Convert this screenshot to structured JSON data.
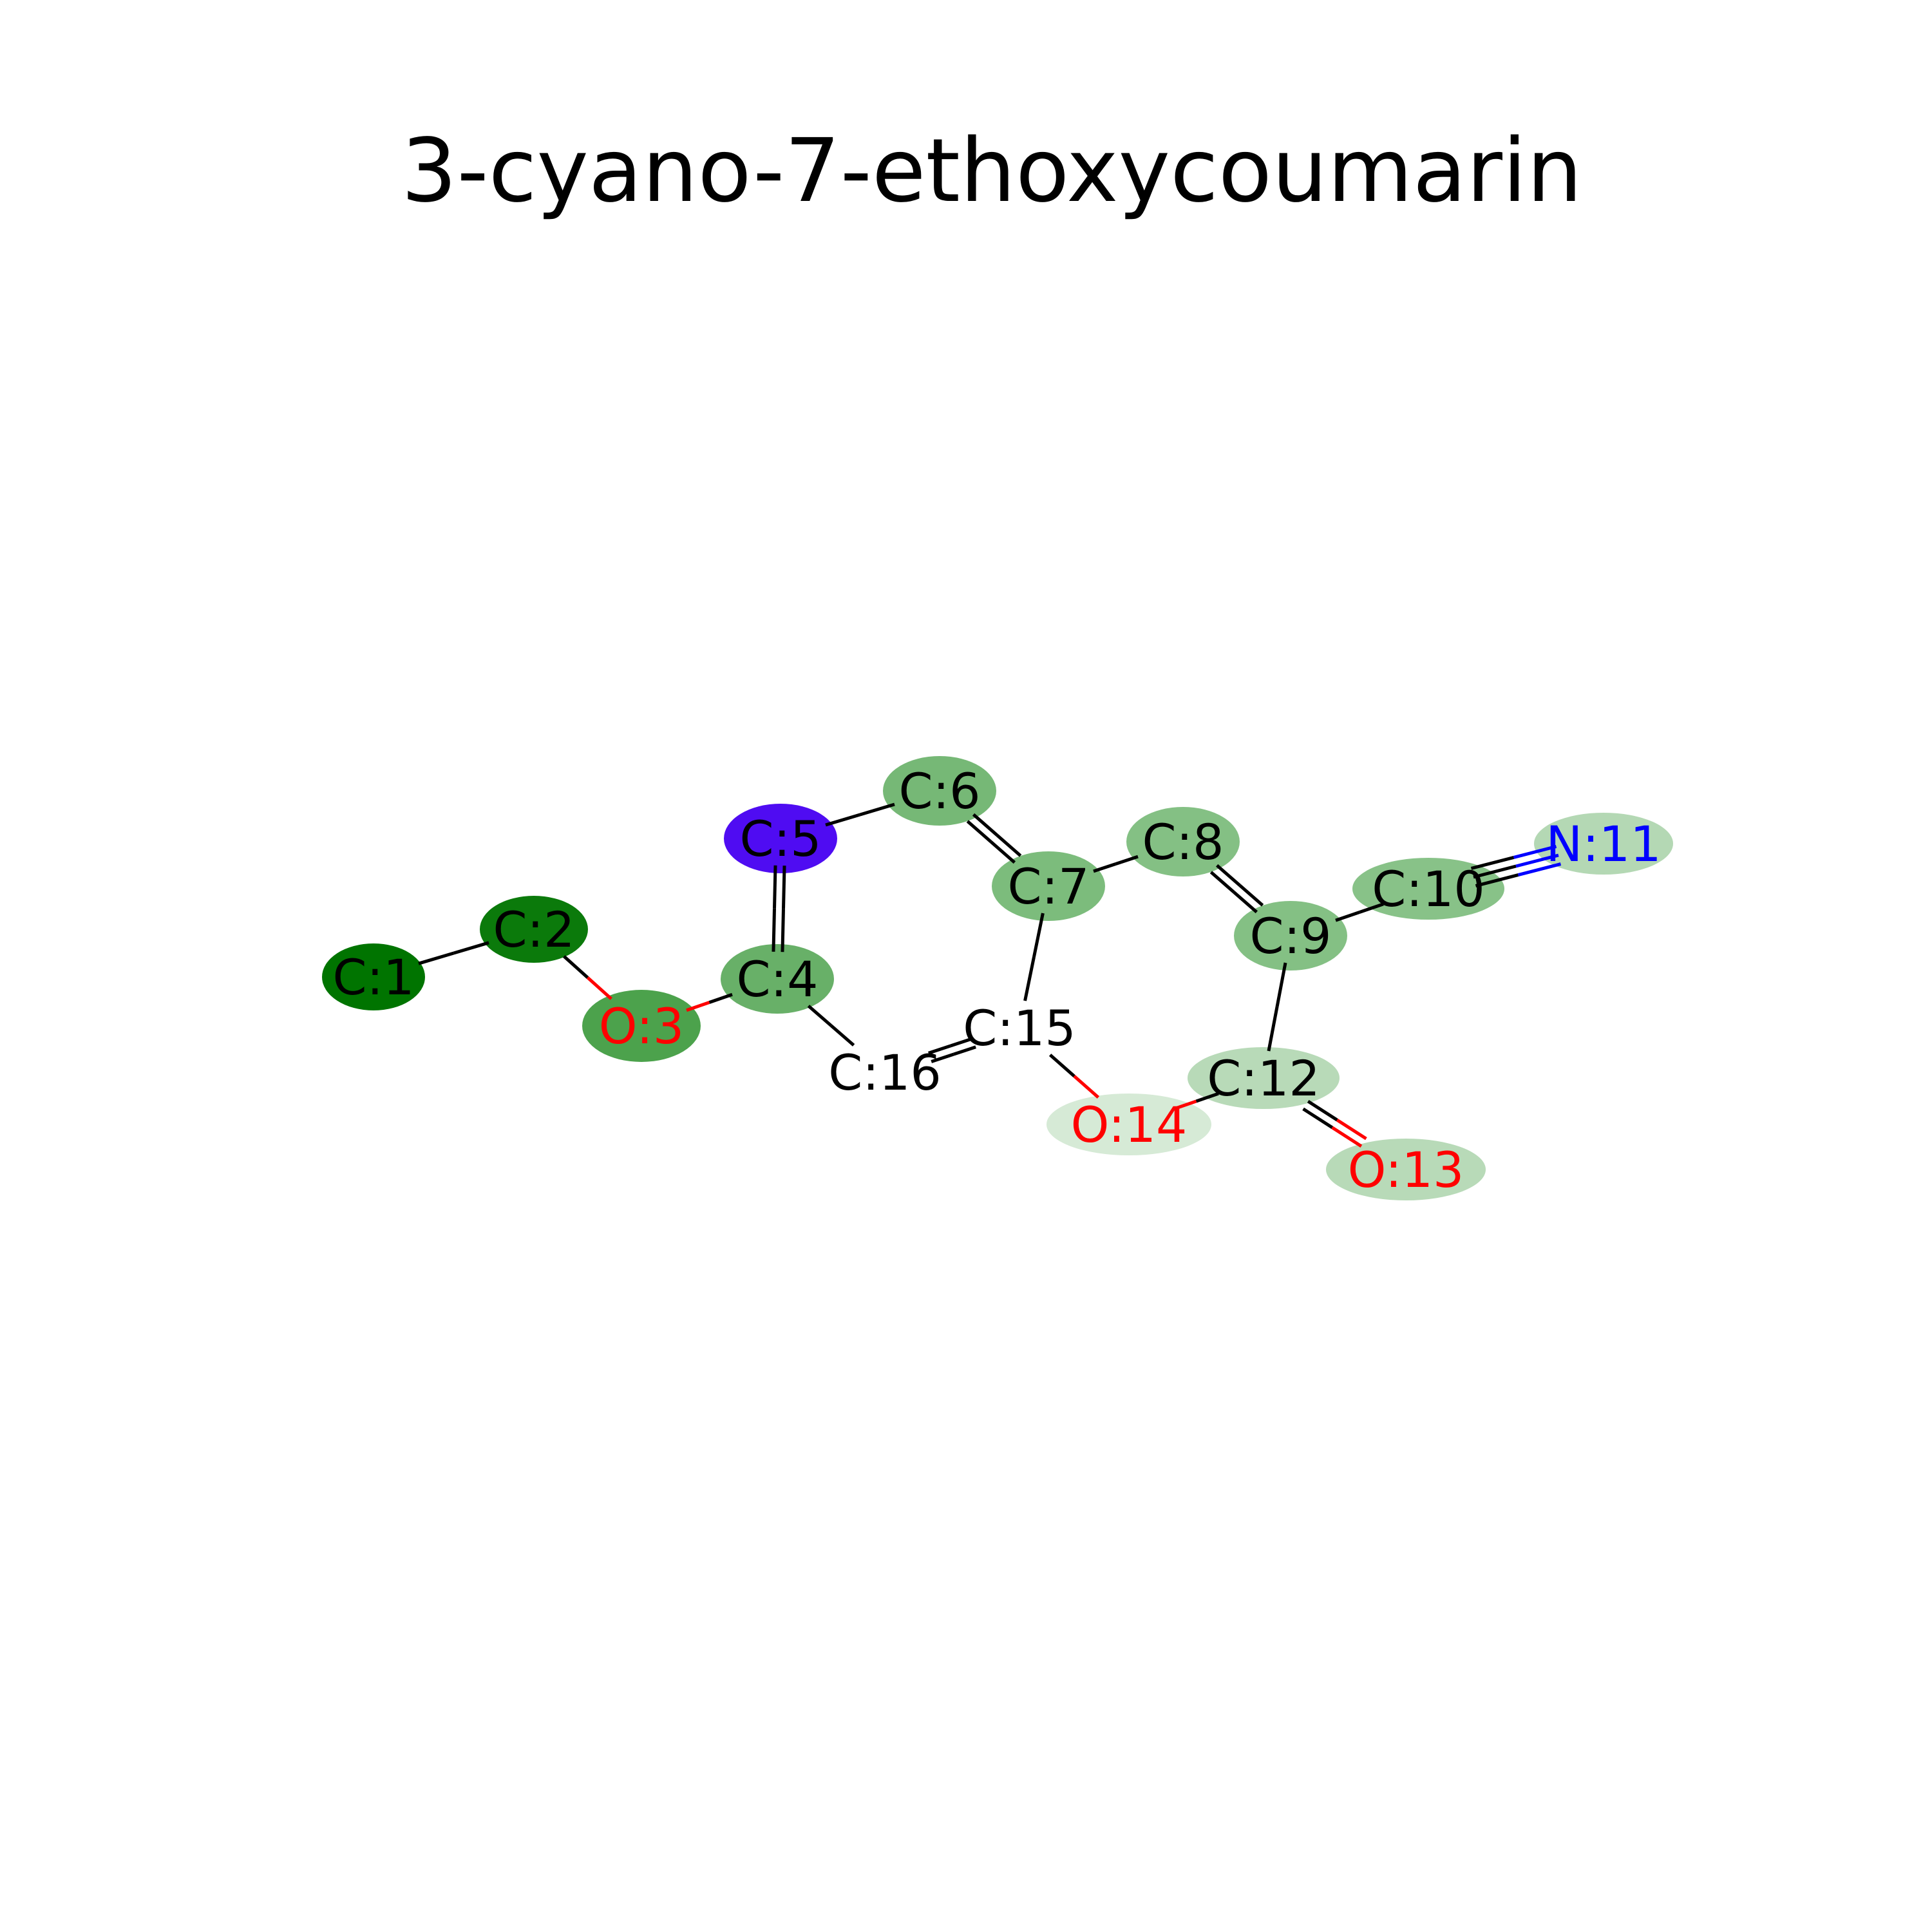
{
  "title": "3-cyano-7-ethoxycoumarin",
  "colors": {
    "C_text": "#000000",
    "O_text": "#ff0000",
    "N_text": "#0000ff",
    "bond": "#000000"
  },
  "atoms": [
    {
      "id": 1,
      "label": "C:1",
      "element": "C",
      "highlight": "#007400"
    },
    {
      "id": 2,
      "label": "C:2",
      "element": "C",
      "highlight": "#0b7a0b"
    },
    {
      "id": 3,
      "label": "O:3",
      "element": "O",
      "highlight": "#4ca24c"
    },
    {
      "id": 4,
      "label": "C:4",
      "element": "C",
      "highlight": "#68b068"
    },
    {
      "id": 5,
      "label": "C:5",
      "element": "C",
      "highlight": "#4f0cf2"
    },
    {
      "id": 6,
      "label": "C:6",
      "element": "C",
      "highlight": "#76b876"
    },
    {
      "id": 7,
      "label": "C:7",
      "element": "C",
      "highlight": "#7cbc7c"
    },
    {
      "id": 8,
      "label": "C:8",
      "element": "C",
      "highlight": "#84c084"
    },
    {
      "id": 9,
      "label": "C:9",
      "element": "C",
      "highlight": "#84c084"
    },
    {
      "id": 10,
      "label": "C:10",
      "element": "C",
      "highlight": "#88c288"
    },
    {
      "id": 11,
      "label": "N:11",
      "element": "N",
      "highlight": "#b4d8b4"
    },
    {
      "id": 12,
      "label": "C:12",
      "element": "C",
      "highlight": "#b8dab8"
    },
    {
      "id": 13,
      "label": "O:13",
      "element": "O",
      "highlight": "#b8dab8"
    },
    {
      "id": 14,
      "label": "O:14",
      "element": "O",
      "highlight": "#d6ead6"
    },
    {
      "id": 15,
      "label": "C:15",
      "element": "C",
      "highlight": null
    },
    {
      "id": 16,
      "label": "C:16",
      "element": "C",
      "highlight": null
    }
  ],
  "bonds": [
    {
      "a": 1,
      "b": 2,
      "order": 1
    },
    {
      "a": 2,
      "b": 3,
      "order": 1
    },
    {
      "a": 3,
      "b": 4,
      "order": 1
    },
    {
      "a": 4,
      "b": 5,
      "order": 2
    },
    {
      "a": 5,
      "b": 6,
      "order": 1
    },
    {
      "a": 6,
      "b": 7,
      "order": 2
    },
    {
      "a": 7,
      "b": 8,
      "order": 1
    },
    {
      "a": 8,
      "b": 9,
      "order": 2
    },
    {
      "a": 9,
      "b": 10,
      "order": 1
    },
    {
      "a": 10,
      "b": 11,
      "order": 3
    },
    {
      "a": 9,
      "b": 12,
      "order": 1
    },
    {
      "a": 12,
      "b": 13,
      "order": 2
    },
    {
      "a": 12,
      "b": 14,
      "order": 1
    },
    {
      "a": 14,
      "b": 15,
      "order": 1
    },
    {
      "a": 15,
      "b": 7,
      "order": 1
    },
    {
      "a": 15,
      "b": 16,
      "order": 2
    },
    {
      "a": 16,
      "b": 4,
      "order": 1
    }
  ]
}
